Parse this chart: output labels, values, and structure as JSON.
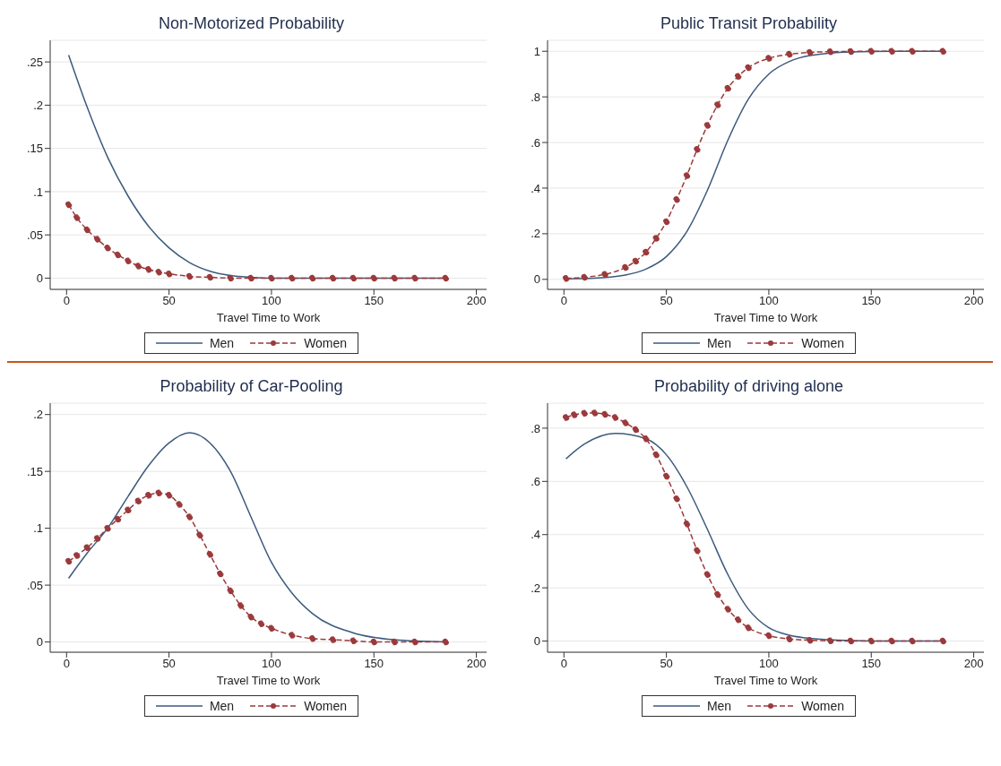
{
  "chart_data": [
    {
      "type": "line",
      "title": "Non-Motorized Probability",
      "xlabel": "Travel Time to Work",
      "xlim": [
        -8,
        205
      ],
      "xticks": [
        0,
        50,
        100,
        150,
        200
      ],
      "ylim": [
        -0.013,
        0.275
      ],
      "yticks": [
        {
          "value": 0,
          "label": "0"
        },
        {
          "value": 0.05,
          "label": ".05"
        },
        {
          "value": 0.1,
          "label": ".1"
        },
        {
          "value": 0.15,
          "label": ".15"
        },
        {
          "value": 0.2,
          "label": ".2"
        },
        {
          "value": 0.25,
          "label": ".25"
        }
      ],
      "grid": "y",
      "legend": "bottom",
      "series": [
        {
          "name": "Men",
          "color": "#3b5a7d",
          "marker": "none",
          "line_style": "solid",
          "x": [
            1,
            10,
            20,
            30,
            40,
            50,
            60,
            70,
            80,
            90,
            100,
            120,
            140,
            160,
            185
          ],
          "values": [
            0.258,
            0.198,
            0.14,
            0.095,
            0.06,
            0.035,
            0.018,
            0.008,
            0.003,
            0.001,
            0,
            0,
            0,
            0,
            0
          ]
        },
        {
          "name": "Women",
          "color": "#9b3a3c",
          "marker": "circle",
          "line_style": "dashed",
          "x": [
            1,
            5,
            10,
            15,
            20,
            25,
            30,
            35,
            40,
            45,
            50,
            60,
            70,
            80,
            90,
            100,
            110,
            120,
            130,
            140,
            150,
            160,
            170,
            185
          ],
          "values": [
            0.085,
            0.07,
            0.056,
            0.045,
            0.035,
            0.027,
            0.02,
            0.014,
            0.01,
            0.007,
            0.005,
            0.002,
            0.001,
            0,
            0,
            0,
            0,
            0,
            0,
            0,
            0,
            0,
            0,
            0
          ]
        }
      ]
    },
    {
      "type": "line",
      "title": "Public Transit Probability",
      "xlabel": "Travel Time to Work",
      "xlim": [
        -8,
        205
      ],
      "xticks": [
        0,
        50,
        100,
        150,
        200
      ],
      "ylim": [
        -0.044,
        1.048
      ],
      "yticks": [
        {
          "value": 0,
          "label": "0"
        },
        {
          "value": 0.2,
          "label": ".2"
        },
        {
          "value": 0.4,
          "label": ".4"
        },
        {
          "value": 0.6,
          "label": ".6"
        },
        {
          "value": 0.8,
          "label": ".8"
        },
        {
          "value": 1,
          "label": "1"
        }
      ],
      "grid": "y",
      "legend": "bottom",
      "series": [
        {
          "name": "Men",
          "color": "#3b5a7d",
          "marker": "none",
          "line_style": "solid",
          "x": [
            1,
            20,
            30,
            40,
            50,
            60,
            70,
            80,
            90,
            100,
            110,
            120,
            140,
            160,
            185
          ],
          "values": [
            0.002,
            0.008,
            0.019,
            0.045,
            0.1,
            0.21,
            0.39,
            0.61,
            0.79,
            0.9,
            0.955,
            0.981,
            0.997,
            1,
            1
          ]
        },
        {
          "name": "Women",
          "color": "#9b3a3c",
          "marker": "circle",
          "line_style": "dashed",
          "x": [
            1,
            10,
            20,
            30,
            35,
            40,
            45,
            50,
            55,
            60,
            65,
            70,
            75,
            80,
            85,
            90,
            100,
            110,
            120,
            130,
            140,
            150,
            160,
            170,
            185
          ],
          "values": [
            0.004,
            0.009,
            0.022,
            0.052,
            0.08,
            0.119,
            0.18,
            0.253,
            0.35,
            0.455,
            0.57,
            0.675,
            0.765,
            0.838,
            0.89,
            0.928,
            0.969,
            0.987,
            0.995,
            0.998,
            0.999,
            1,
            1,
            1,
            1
          ]
        }
      ]
    },
    {
      "type": "line",
      "title": "Probability of Car-Pooling",
      "xlabel": "Travel Time to Work",
      "xlim": [
        -8,
        205
      ],
      "xticks": [
        0,
        50,
        100,
        150,
        200
      ],
      "ylim": [
        -0.009,
        0.21
      ],
      "yticks": [
        {
          "value": 0,
          "label": "0"
        },
        {
          "value": 0.05,
          "label": ".05"
        },
        {
          "value": 0.1,
          "label": ".1"
        },
        {
          "value": 0.15,
          "label": ".15"
        },
        {
          "value": 0.2,
          "label": ".2"
        }
      ],
      "grid": "y",
      "legend": "bottom",
      "series": [
        {
          "name": "Men",
          "color": "#3b5a7d",
          "marker": "none",
          "line_style": "solid",
          "x": [
            1,
            10,
            20,
            30,
            40,
            50,
            60,
            70,
            80,
            90,
            100,
            110,
            120,
            140,
            160,
            185
          ],
          "values": [
            0.056,
            0.078,
            0.1,
            0.128,
            0.155,
            0.175,
            0.184,
            0.175,
            0.15,
            0.11,
            0.07,
            0.043,
            0.025,
            0.008,
            0.002,
            0
          ]
        },
        {
          "name": "Women",
          "color": "#9b3a3c",
          "marker": "circle",
          "line_style": "dashed",
          "x": [
            1,
            5,
            10,
            15,
            20,
            25,
            30,
            35,
            40,
            45,
            50,
            55,
            60,
            65,
            70,
            75,
            80,
            85,
            90,
            95,
            100,
            110,
            120,
            130,
            140,
            150,
            160,
            170,
            185
          ],
          "values": [
            0.071,
            0.076,
            0.083,
            0.091,
            0.1,
            0.108,
            0.116,
            0.124,
            0.129,
            0.131,
            0.129,
            0.121,
            0.11,
            0.094,
            0.077,
            0.06,
            0.045,
            0.032,
            0.022,
            0.016,
            0.012,
            0.006,
            0.003,
            0.002,
            0.001,
            0,
            0,
            0,
            0
          ]
        }
      ]
    },
    {
      "type": "line",
      "title": "Probability of driving alone",
      "xlabel": "Travel Time to Work",
      "xlim": [
        -8,
        205
      ],
      "xticks": [
        0,
        50,
        100,
        150,
        200
      ],
      "ylim": [
        -0.042,
        0.894
      ],
      "yticks": [
        {
          "value": 0,
          "label": "0"
        },
        {
          "value": 0.2,
          "label": ".2"
        },
        {
          "value": 0.4,
          "label": ".4"
        },
        {
          "value": 0.6,
          "label": ".6"
        },
        {
          "value": 0.8,
          "label": ".8"
        }
      ],
      "grid": "y",
      "legend": "bottom",
      "series": [
        {
          "name": "Men",
          "color": "#3b5a7d",
          "marker": "none",
          "line_style": "solid",
          "x": [
            1,
            10,
            25,
            40,
            50,
            60,
            70,
            80,
            90,
            100,
            110,
            120,
            140,
            160,
            185
          ],
          "values": [
            0.685,
            0.74,
            0.78,
            0.76,
            0.7,
            0.58,
            0.42,
            0.25,
            0.12,
            0.05,
            0.022,
            0.01,
            0.002,
            0,
            0
          ]
        },
        {
          "name": "Women",
          "color": "#9b3a3c",
          "marker": "circle",
          "line_style": "dashed",
          "x": [
            1,
            5,
            10,
            15,
            20,
            25,
            30,
            35,
            40,
            45,
            50,
            55,
            60,
            65,
            70,
            75,
            80,
            85,
            90,
            100,
            110,
            120,
            130,
            140,
            150,
            160,
            170,
            185
          ],
          "values": [
            0.84,
            0.85,
            0.856,
            0.857,
            0.852,
            0.84,
            0.82,
            0.795,
            0.76,
            0.7,
            0.62,
            0.535,
            0.44,
            0.34,
            0.25,
            0.175,
            0.12,
            0.08,
            0.05,
            0.02,
            0.008,
            0.003,
            0.001,
            0,
            0,
            0,
            0,
            0
          ]
        }
      ]
    }
  ]
}
